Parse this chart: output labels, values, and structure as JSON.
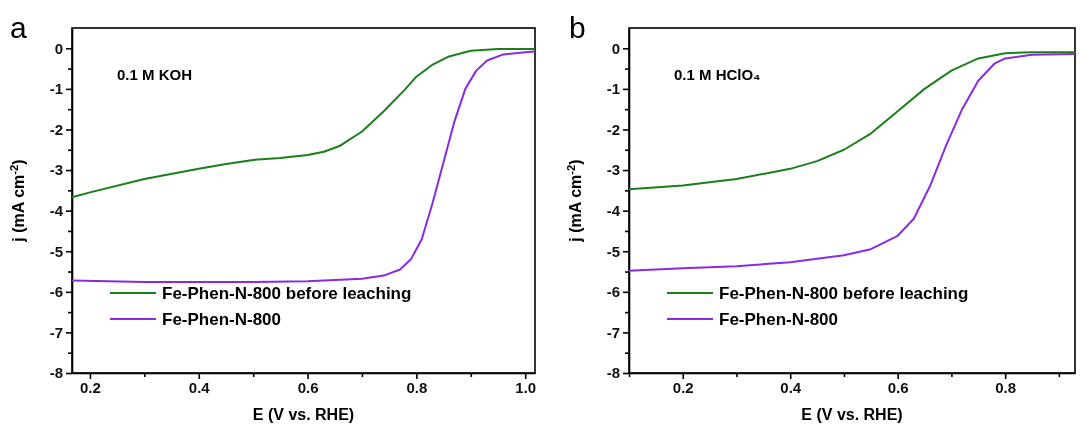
{
  "chart_data": [
    {
      "type": "line",
      "xlabel": "E (V vs. RHE)",
      "ylabel": "j (mA cm$^{-2}$)",
      "annotations": [
        "a",
        "0.1 M KOH"
      ],
      "legend": "bottom left",
      "grid": false,
      "line_style": "solid",
      "marker": "none",
      "xlim": [
        0.167,
        1.018
      ],
      "xticks": [
        0.2,
        {
          "value": 0.3,
          "label": null
        },
        0.4,
        {
          "value": 0.5,
          "label": null
        },
        0.6,
        {
          "value": 0.7,
          "label": null
        },
        0.8,
        {
          "value": 0.9,
          "label": null
        },
        {
          "value": 1.0,
          "label": "1.0"
        }
      ],
      "ylim": [
        -8,
        0.5
      ],
      "yticks": [
        -8,
        {
          "value": -7.5,
          "label": null
        },
        -7,
        {
          "value": -6.5,
          "label": null
        },
        -6,
        {
          "value": -5.5,
          "label": null
        },
        -5,
        {
          "value": -4.5,
          "label": null
        },
        -4,
        {
          "value": -3.5,
          "label": null
        },
        -3,
        {
          "value": -2.5,
          "label": null
        },
        -2,
        {
          "value": -1.5,
          "label": null
        },
        -1,
        {
          "value": -0.5,
          "label": null
        },
        0
      ],
      "series": [
        {
          "name": "Fe-Phen-N-800 before leaching",
          "color": "#1a7f1a",
          "x": [
            0.167,
            0.2,
            0.3,
            0.4,
            0.45,
            0.5,
            0.55,
            0.6,
            0.63,
            0.66,
            0.7,
            0.74,
            0.78,
            0.8,
            0.83,
            0.86,
            0.9,
            0.95,
            1.018
          ],
          "values": [
            -3.67,
            -3.55,
            -3.22,
            -2.97,
            -2.85,
            -2.75,
            -2.7,
            -2.63,
            -2.55,
            -2.4,
            -2.05,
            -1.55,
            -1.0,
            -0.7,
            -0.4,
            -0.2,
            -0.06,
            -0.02,
            -0.02
          ]
        },
        {
          "name": "Fe-Phen-N-800",
          "color": "#8a2be2",
          "x": [
            0.167,
            0.3,
            0.5,
            0.6,
            0.7,
            0.74,
            0.77,
            0.79,
            0.81,
            0.83,
            0.85,
            0.87,
            0.89,
            0.91,
            0.93,
            0.96,
            1.0,
            1.018
          ],
          "values": [
            -5.72,
            -5.76,
            -5.76,
            -5.74,
            -5.68,
            -5.6,
            -5.45,
            -5.2,
            -4.7,
            -3.8,
            -2.8,
            -1.8,
            -1.0,
            -0.55,
            -0.3,
            -0.15,
            -0.1,
            -0.08
          ]
        }
      ]
    },
    {
      "type": "line",
      "xlabel": "E (V vs. RHE)",
      "ylabel": "j (mA cm$^{-2}$)",
      "annotations": [
        "b",
        "0.1 M HClO₄"
      ],
      "legend": "bottom left",
      "grid": false,
      "line_style": "solid",
      "marker": "none",
      "xlim": [
        0.1,
        0.93
      ],
      "xticks": [
        {
          "value": 0.1,
          "label": null
        },
        0.2,
        {
          "value": 0.3,
          "label": null
        },
        0.4,
        {
          "value": 0.5,
          "label": null
        },
        0.6,
        {
          "value": 0.7,
          "label": null
        },
        0.8,
        {
          "value": 0.9,
          "label": null
        }
      ],
      "ylim": [
        -8,
        0.5
      ],
      "yticks": [
        -8,
        {
          "value": -7.5,
          "label": null
        },
        -7,
        {
          "value": -6.5,
          "label": null
        },
        -6,
        {
          "value": -5.5,
          "label": null
        },
        -5,
        {
          "value": -4.5,
          "label": null
        },
        -4,
        {
          "value": -3.5,
          "label": null
        },
        -3,
        {
          "value": -2.5,
          "label": null
        },
        -2,
        {
          "value": -1.5,
          "label": null
        },
        -1,
        {
          "value": -0.5,
          "label": null
        },
        0
      ],
      "series": [
        {
          "name": "Fe-Phen-N-800 before leaching",
          "color": "#1a7f1a",
          "x": [
            0.1,
            0.2,
            0.3,
            0.4,
            0.45,
            0.5,
            0.55,
            0.6,
            0.65,
            0.7,
            0.75,
            0.8,
            0.85,
            0.93
          ],
          "values": [
            -3.47,
            -3.38,
            -3.22,
            -2.97,
            -2.78,
            -2.5,
            -2.1,
            -1.55,
            -1.0,
            -0.55,
            -0.25,
            -0.12,
            -0.1,
            -0.1
          ]
        },
        {
          "name": "Fe-Phen-N-800",
          "color": "#8a2be2",
          "x": [
            0.1,
            0.2,
            0.3,
            0.4,
            0.5,
            0.55,
            0.6,
            0.63,
            0.66,
            0.69,
            0.72,
            0.75,
            0.78,
            0.8,
            0.85,
            0.93
          ],
          "values": [
            -5.48,
            -5.42,
            -5.37,
            -5.27,
            -5.1,
            -4.95,
            -4.62,
            -4.2,
            -3.4,
            -2.4,
            -1.5,
            -0.8,
            -0.38,
            -0.25,
            -0.16,
            -0.14
          ]
        }
      ]
    }
  ]
}
